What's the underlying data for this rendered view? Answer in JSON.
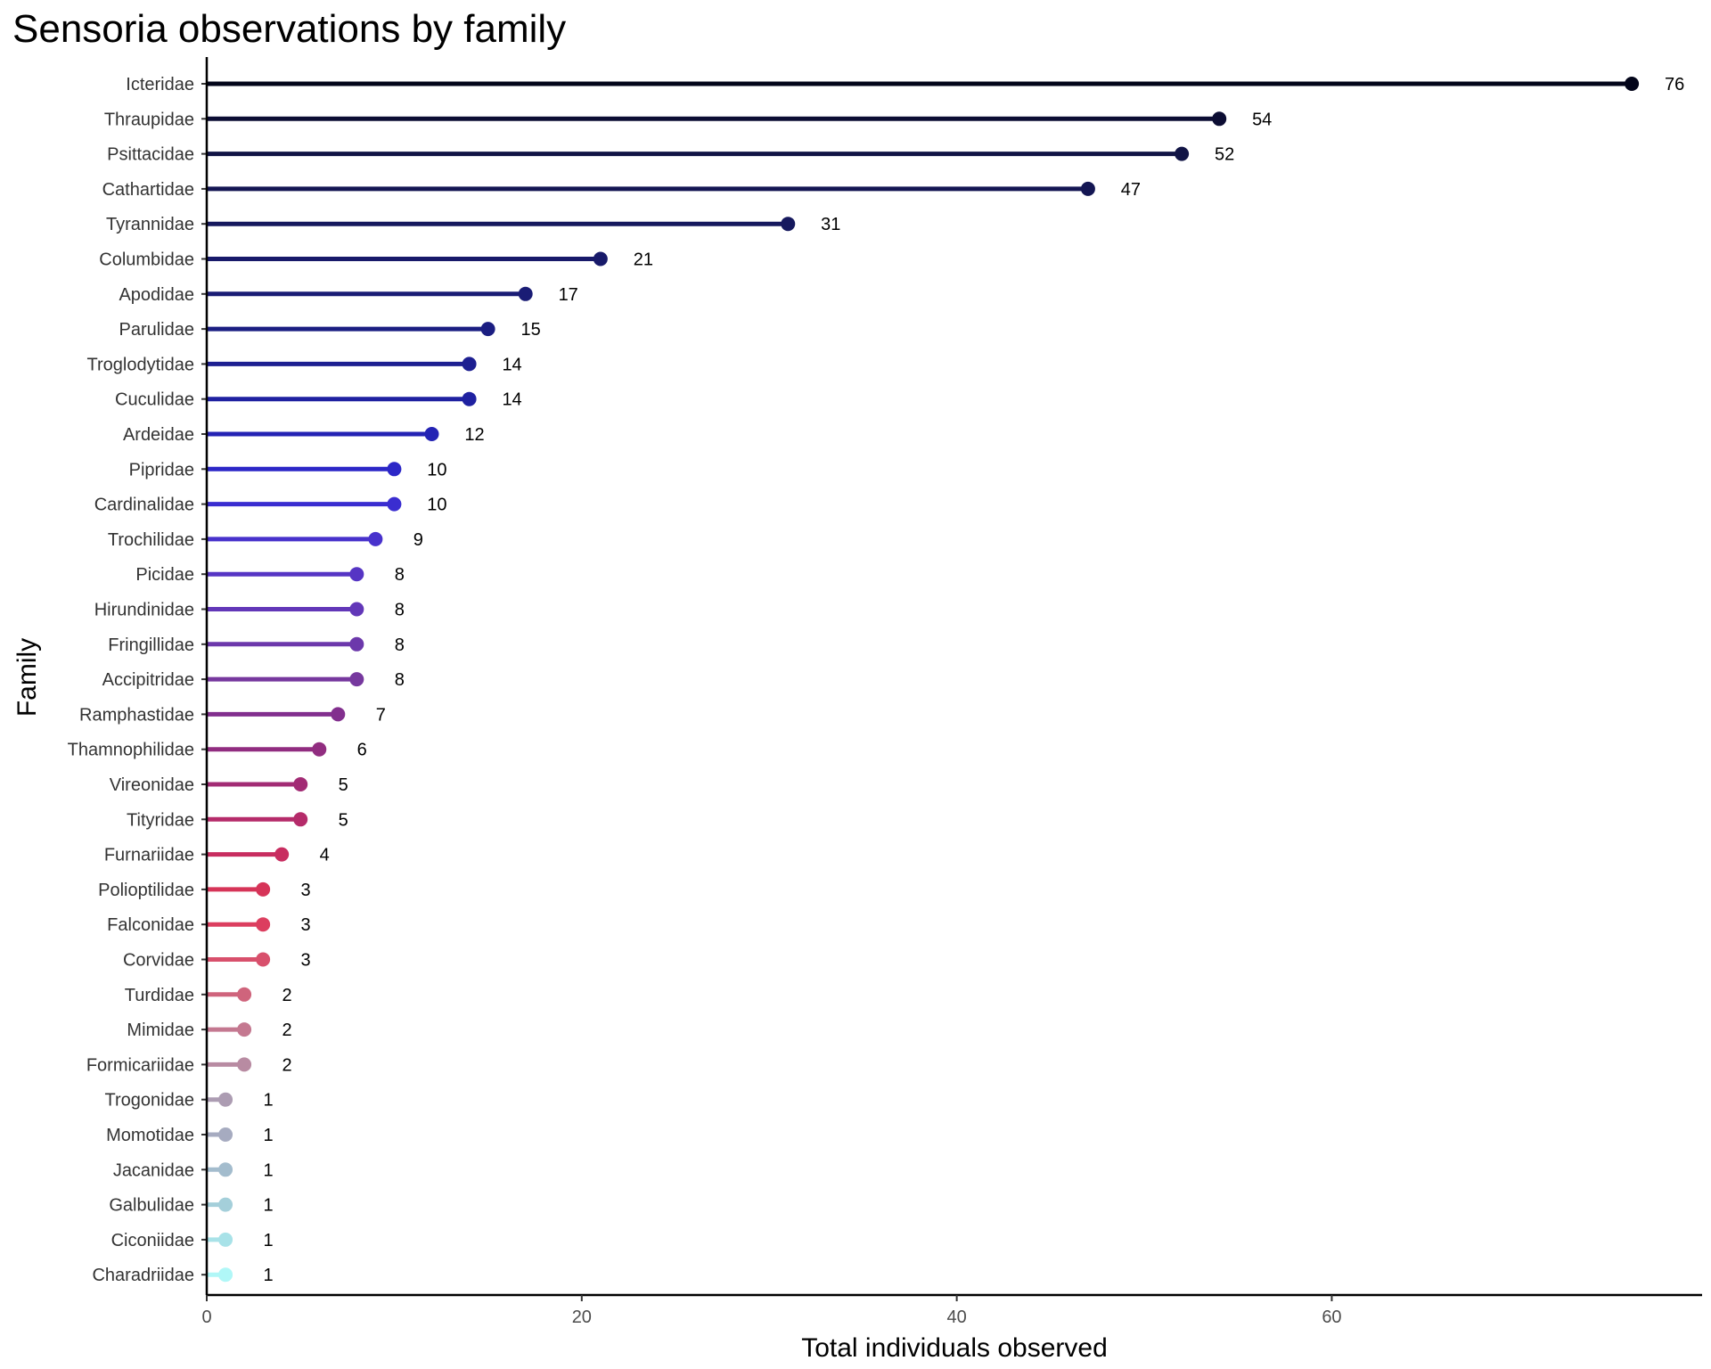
{
  "chart_data": {
    "type": "lollipop",
    "title": "Sensoria observations by family",
    "xlabel": "Total individuals observed",
    "ylabel": "Family",
    "xlim": [
      0,
      79.75
    ],
    "xticks": [
      0,
      20,
      40,
      60
    ],
    "grid": false,
    "legend": "none",
    "categories": [
      "Icteridae",
      "Thraupidae",
      "Psittacidae",
      "Cathartidae",
      "Tyrannidae",
      "Columbidae",
      "Apodidae",
      "Parulidae",
      "Troglodytidae",
      "Cuculidae",
      "Ardeidae",
      "Pipridae",
      "Cardinalidae",
      "Trochilidae",
      "Picidae",
      "Hirundinidae",
      "Fringillidae",
      "Accipitridae",
      "Ramphastidae",
      "Thamnophilidae",
      "Vireonidae",
      "Tityridae",
      "Furnariidae",
      "Polioptilidae",
      "Falconidae",
      "Corvidae",
      "Turdidae",
      "Mimidae",
      "Formicariidae",
      "Trogonidae",
      "Momotidae",
      "Jacanidae",
      "Galbulidae",
      "Ciconiidae",
      "Charadriidae"
    ],
    "values": [
      76,
      54,
      52,
      47,
      31,
      21,
      17,
      15,
      14,
      14,
      12,
      10,
      10,
      9,
      8,
      8,
      8,
      8,
      7,
      6,
      5,
      5,
      4,
      3,
      3,
      3,
      2,
      2,
      2,
      1,
      1,
      1,
      1,
      1,
      1
    ],
    "value_labels": [
      "76",
      "54",
      "52",
      "47",
      "31",
      "21",
      "17",
      "15",
      "14",
      "14",
      "12",
      "10",
      "10",
      "9",
      "8",
      "8",
      "8",
      "8",
      "7",
      "6",
      "5",
      "5",
      "4",
      "3",
      "3",
      "3",
      "2",
      "2",
      "2",
      "1",
      "1",
      "1",
      "1",
      "1",
      "1"
    ],
    "colors": [
      "#03051a",
      "#0c0d33",
      "#111445",
      "#141653",
      "#16195e",
      "#181a6a",
      "#1a1c75",
      "#1b1e82",
      "#1d1f91",
      "#1f21a1",
      "#2423b4",
      "#2c27c7",
      "#3a2dd0",
      "#4832cc",
      "#5635c4",
      "#6237b8",
      "#6c38ab",
      "#76389e",
      "#822f8e",
      "#912d80",
      "#a22b74",
      "#b52b6a",
      "#c82d60",
      "#d63458",
      "#dc3e5f",
      "#d8506c",
      "#cf647c",
      "#c47890",
      "#b88ba2",
      "#ac9cb2",
      "#a6abc0",
      "#a3bccd",
      "#a4cfda",
      "#a8e2e8",
      "#b0f7f7"
    ]
  }
}
